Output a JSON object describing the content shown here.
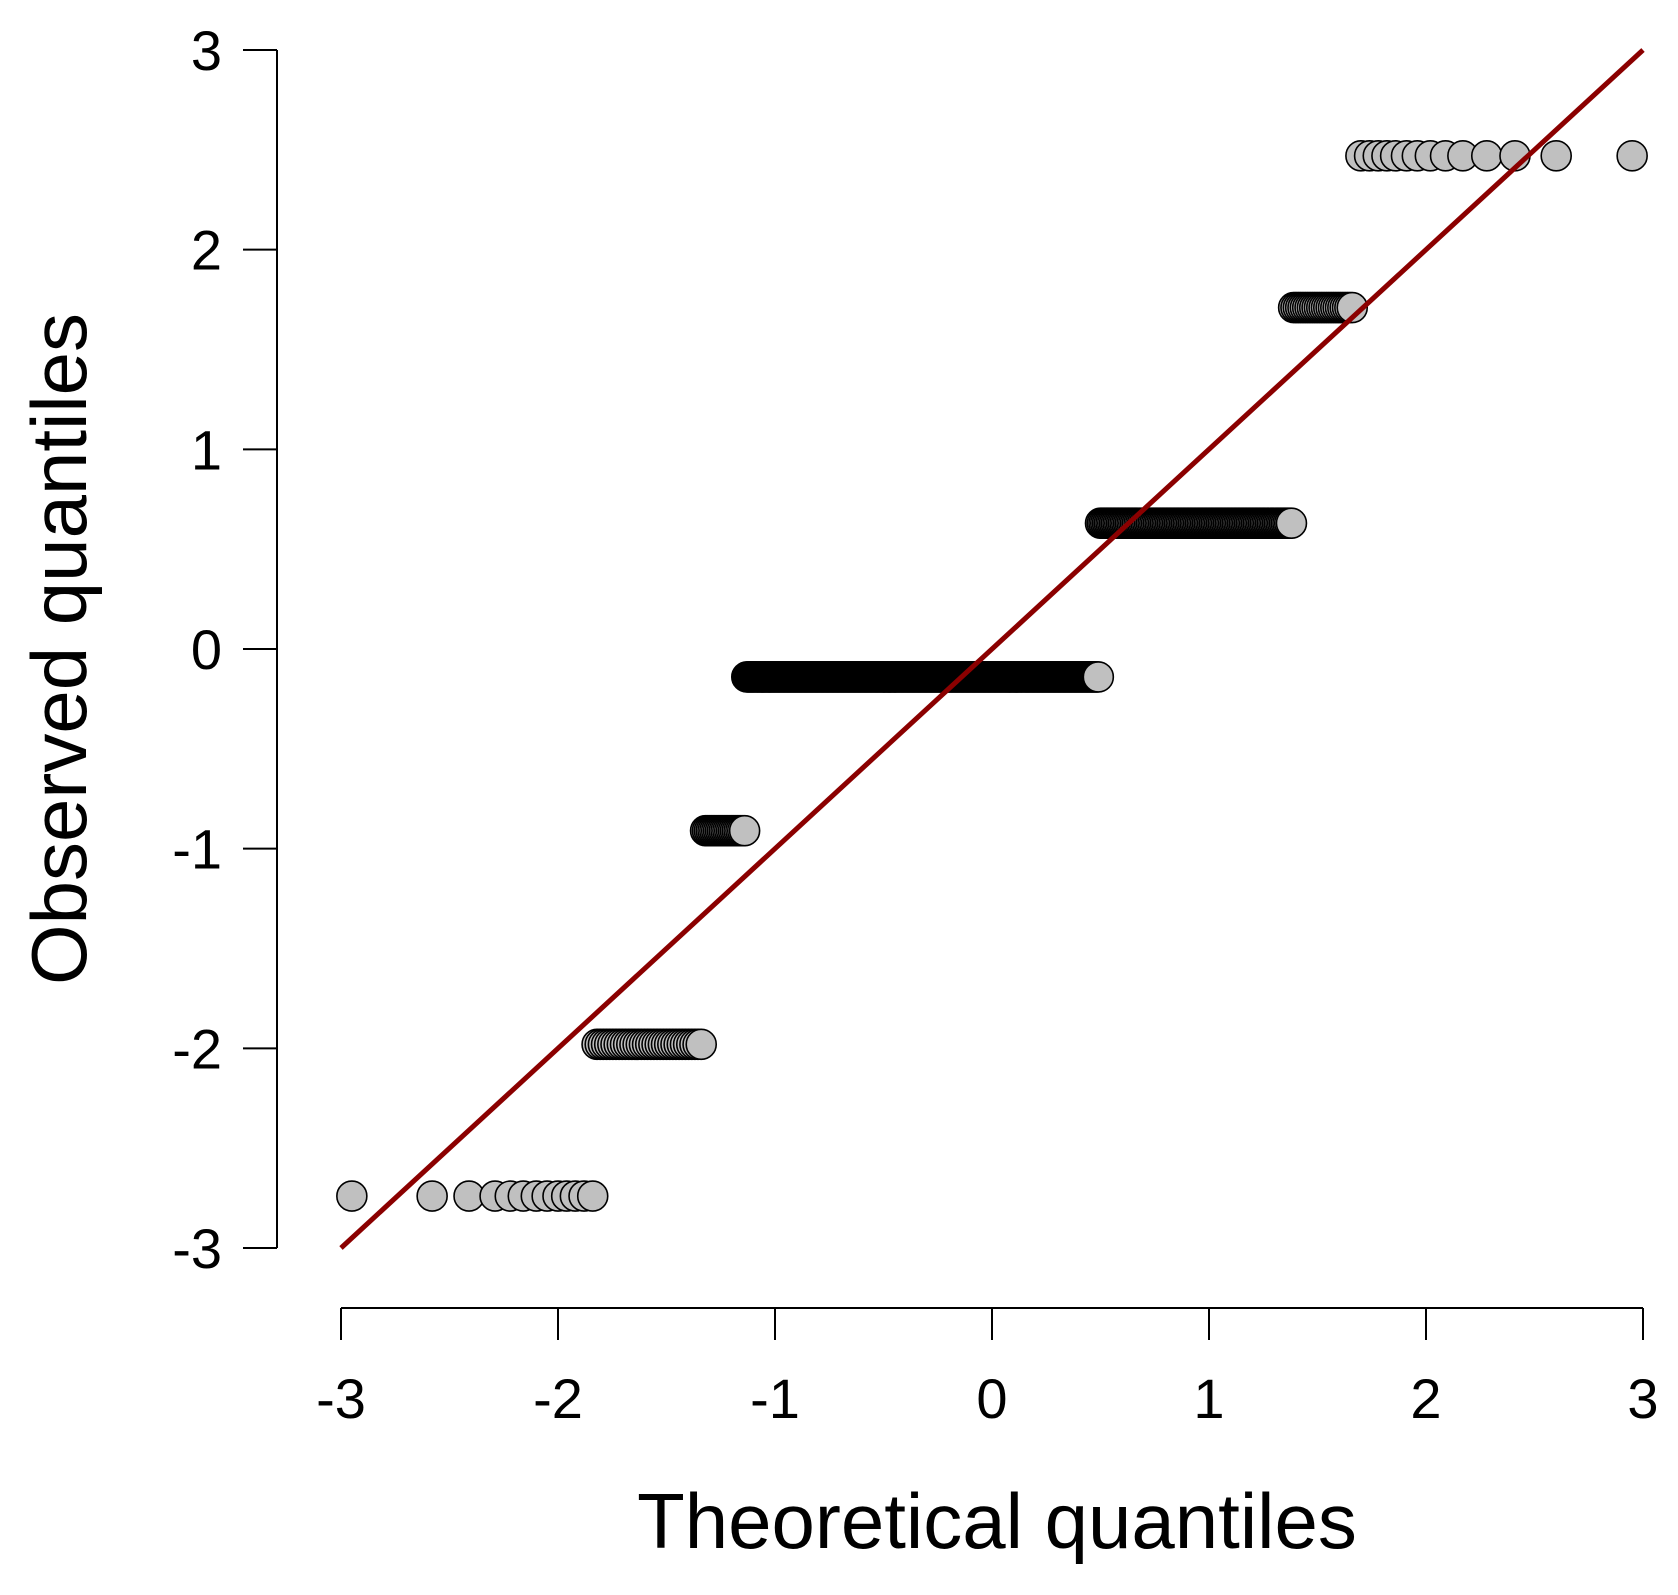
{
  "chart_data": {
    "type": "scatter",
    "title": "",
    "xlabel": "Theoretical quantiles",
    "ylabel": "Observed quantiles",
    "xlim": [
      -3,
      3
    ],
    "ylim": [
      -3,
      3
    ],
    "x_ticks": [
      "-3",
      "-2",
      "-1",
      "0",
      "1",
      "2",
      "3"
    ],
    "y_ticks": [
      "-3",
      "-2",
      "-1",
      "0",
      "1",
      "2",
      "3"
    ],
    "grid": false,
    "legend": "none",
    "reference_line": {
      "x": [
        -3,
        3
      ],
      "y": [
        -3,
        3
      ],
      "color": "#8b0000"
    },
    "point_fill": "#c0c0c0",
    "point_stroke": "#000000",
    "groups": [
      {
        "y": -2.74,
        "x": [
          -2.95,
          -2.58,
          -2.41,
          -2.29,
          -2.22,
          -2.16,
          -2.1,
          -2.05,
          -2.0,
          -1.96,
          -1.92,
          -1.88,
          -1.84
        ]
      },
      {
        "y": -1.98,
        "x_range": [
          -1.82,
          -1.34
        ],
        "n": 34
      },
      {
        "y": -0.91,
        "x_range": [
          -1.32,
          -1.14
        ],
        "n": 22
      },
      {
        "y": -0.14,
        "x_range": [
          -1.13,
          0.49
        ],
        "n": 320
      },
      {
        "y": 0.63,
        "x_range": [
          0.5,
          1.38
        ],
        "n": 110
      },
      {
        "y": 1.71,
        "x_range": [
          1.39,
          1.66
        ],
        "n": 26
      },
      {
        "y": 2.47,
        "x": [
          1.7,
          1.74,
          1.78,
          1.82,
          1.86,
          1.91,
          1.96,
          2.02,
          2.09,
          2.17,
          2.28,
          2.41,
          2.6,
          2.95
        ]
      }
    ]
  }
}
